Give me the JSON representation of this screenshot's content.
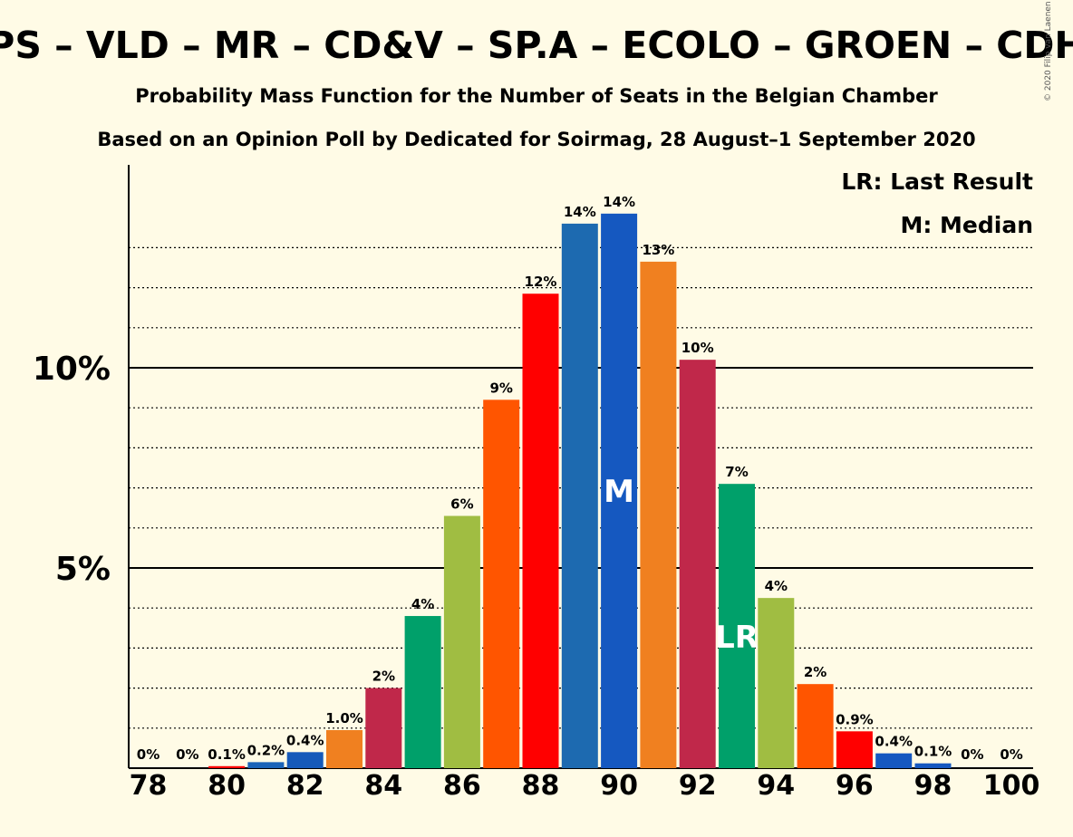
{
  "chart_data": {
    "type": "bar",
    "title": "PS – VLD – MR – CD&V – SP.A – ECOLO – GROEN – CDH",
    "subtitle": "Probability Mass Function for the Number of Seats in the Belgian Chamber",
    "subtitle2": "Based on an Opinion Poll by Dedicated for Soirmag, 28 August–1 September 2020",
    "copyright": "© 2020 Filip van Laenen",
    "legend": {
      "lr": "LR: Last Result",
      "m": "M: Median",
      "placement": "top-right"
    },
    "xlabel": "",
    "ylabel": "",
    "ylim": [
      0,
      15
    ],
    "y_major_ticks": [
      {
        "value": 5,
        "label": "5%"
      },
      {
        "value": 10,
        "label": "10%"
      }
    ],
    "y_minor_gridlines": [
      1,
      2,
      3,
      4,
      6,
      7,
      8,
      9,
      11,
      12,
      13
    ],
    "x_tick_labels": [
      "78",
      "80",
      "82",
      "84",
      "86",
      "88",
      "90",
      "92",
      "94",
      "96",
      "98",
      "100"
    ],
    "categories": [
      "78",
      "79",
      "80",
      "81",
      "82",
      "83",
      "84",
      "85",
      "86",
      "87",
      "88",
      "89",
      "90",
      "91",
      "92",
      "93",
      "94",
      "95",
      "96",
      "97",
      "98",
      "99",
      "100"
    ],
    "values": [
      0,
      0,
      0.05,
      0.15,
      0.4,
      0.95,
      2.0,
      3.8,
      6.3,
      9.2,
      11.85,
      13.6,
      13.85,
      12.65,
      10.2,
      7.1,
      4.25,
      2.1,
      0.92,
      0.37,
      0.12,
      0,
      0
    ],
    "labels": [
      "0%",
      "0%",
      "0.1%",
      "0.2%",
      "0.4%",
      "1.0%",
      "2%",
      "4%",
      "6%",
      "9%",
      "12%",
      "14%",
      "14%",
      "13%",
      "10%",
      "7%",
      "4%",
      "2%",
      "0.9%",
      "0.4%",
      "0.1%",
      "0%",
      "0%"
    ],
    "colors": [
      "#ff0000",
      "#1f5fbf",
      "#ff0000",
      "#1b64b8",
      "#155aba",
      "#f08020",
      "#c0284a",
      "#00a06a",
      "#a0bd42",
      "#ff5500",
      "#ff0000",
      "#1d6ab0",
      "#1558c0",
      "#f08020",
      "#c0284a",
      "#00a06a",
      "#a0bd42",
      "#ff5500",
      "#ff0000",
      "#1558c0",
      "#1558c0",
      "#1558c0",
      "#1558c0"
    ],
    "markers": [
      {
        "category": "90",
        "text": "M"
      },
      {
        "category": "93",
        "text": "LR"
      }
    ]
  }
}
